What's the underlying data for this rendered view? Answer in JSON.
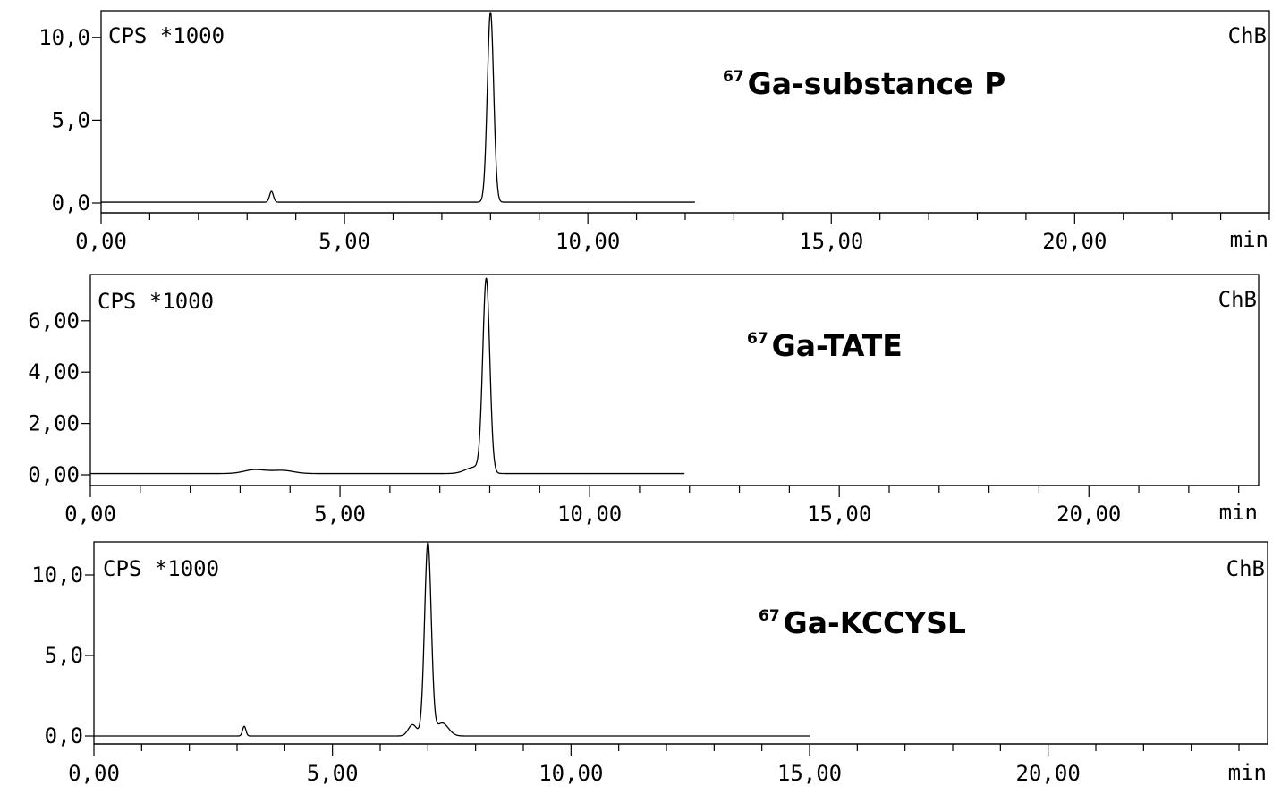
{
  "chart_data": [
    {
      "type": "line",
      "title_sup": "67",
      "title_main": "Ga-substance P",
      "ylabel": "CPS *1000",
      "channel": "ChB",
      "xunit": "min",
      "xlim": [
        0,
        24
      ],
      "ylim": [
        0,
        11.5
      ],
      "x_tick_labels": [
        "0,00",
        "5,00",
        "10,00",
        "15,00",
        "20,00"
      ],
      "x_tick_values": [
        0,
        5,
        10,
        15,
        20
      ],
      "y_tick_labels": [
        "0,0",
        "5,0",
        "10,0"
      ],
      "y_tick_values": [
        0,
        5,
        10
      ],
      "trace_end": 12.2,
      "baseline": 0.05,
      "peaks": [
        {
          "rt": 3.5,
          "height": 0.65,
          "width": 0.04
        },
        {
          "rt": 8.0,
          "height": 11.5,
          "width": 0.065
        }
      ]
    },
    {
      "type": "line",
      "title_sup": "67",
      "title_main": "Ga-TATE",
      "ylabel": "CPS *1000",
      "channel": "ChB",
      "xunit": "min",
      "xlim": [
        0,
        23.4
      ],
      "ylim": [
        0,
        7.7
      ],
      "x_tick_labels": [
        "0,00",
        "5,00",
        "10,00",
        "15,00",
        "20,00"
      ],
      "x_tick_values": [
        0,
        5,
        10,
        15,
        20
      ],
      "y_tick_labels": [
        "0,00",
        "2,00",
        "4,00",
        "6,00"
      ],
      "y_tick_values": [
        0,
        2,
        4,
        6
      ],
      "trace_end": 11.9,
      "baseline": 0.05,
      "peaks": [
        {
          "rt": 3.3,
          "height": 0.15,
          "width": 0.22
        },
        {
          "rt": 3.85,
          "height": 0.12,
          "width": 0.22
        },
        {
          "rt": 7.7,
          "height": 0.25,
          "width": 0.18
        },
        {
          "rt": 7.93,
          "height": 7.5,
          "width": 0.07
        }
      ]
    },
    {
      "type": "line",
      "title_sup": "67",
      "title_main": "Ga-KCCYSL",
      "ylabel": "CPS *1000",
      "channel": "ChB",
      "xunit": "min",
      "xlim": [
        0,
        24.6
      ],
      "ylim": [
        0,
        12
      ],
      "x_tick_labels": [
        "0,00",
        "5,00",
        "10,00",
        "15,00",
        "20,00"
      ],
      "x_tick_values": [
        0,
        5,
        10,
        15,
        20
      ],
      "y_tick_labels": [
        "0,0",
        "5,0",
        "10,0"
      ],
      "y_tick_values": [
        0,
        5,
        10
      ],
      "trace_end": 15.0,
      "baseline": 0.0,
      "peaks": [
        {
          "rt": 3.15,
          "height": 0.6,
          "width": 0.035
        },
        {
          "rt": 6.68,
          "height": 0.7,
          "width": 0.09
        },
        {
          "rt": 7.0,
          "height": 12.0,
          "width": 0.07
        },
        {
          "rt": 7.3,
          "height": 0.8,
          "width": 0.13
        }
      ]
    }
  ]
}
